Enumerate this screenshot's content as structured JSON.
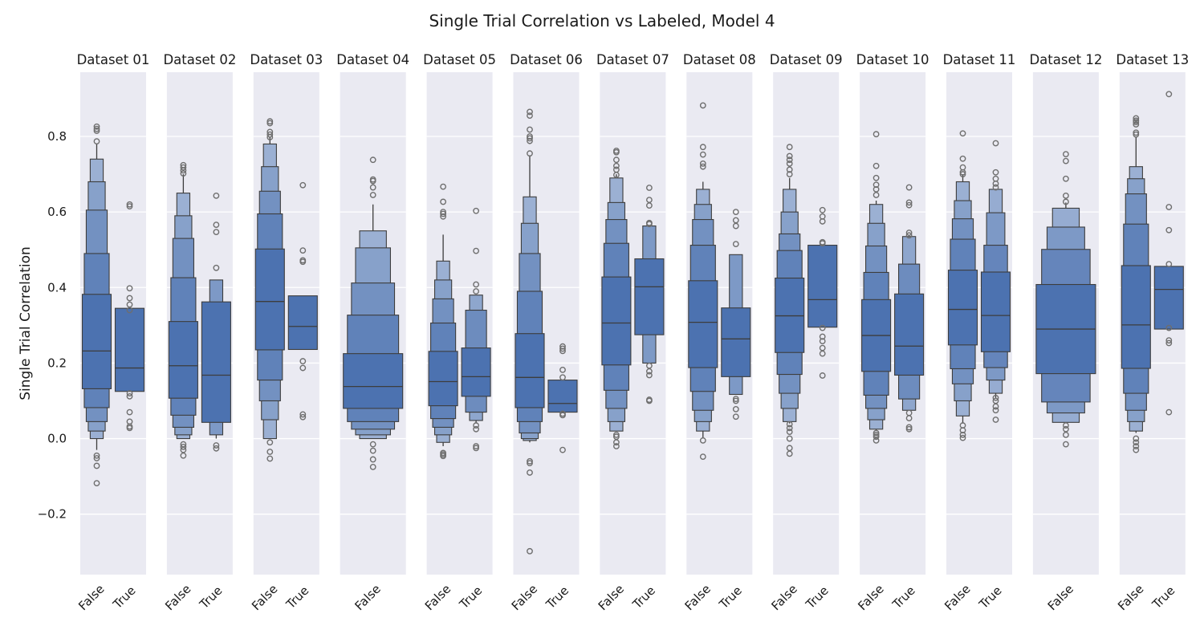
{
  "title": "Single Trial Correlation vs Labeled, Model 4",
  "chart_data": {
    "type": "boxen",
    "title": "Single Trial Correlation vs Labeled, Model 4",
    "ylabel": "Single Trial Correlation",
    "xlabel": "",
    "ylim": [
      -0.36,
      0.97
    ],
    "yticks": [
      -0.2,
      0.0,
      0.2,
      0.4,
      0.6,
      0.8
    ],
    "grid": true,
    "colors": {
      "box": "#4c72b0",
      "edge": "#3d3d3d",
      "panel_bg": "#eaeaf2",
      "grid": "#ffffff"
    },
    "panels": [
      {
        "name": "Dataset 01",
        "categories": [
          {
            "label": "False",
            "median": 0.232,
            "extent": [
              -0.03,
              0.78
            ],
            "levels": [
              [
                0.132,
                0.382
              ],
              [
                0.082,
                0.49
              ],
              [
                0.045,
                0.605
              ],
              [
                0.02,
                0.68
              ],
              [
                0.0,
                0.74
              ]
            ],
            "outliers": [
              0.826,
              0.82,
              0.815,
              0.787,
              -0.045,
              -0.052,
              -0.072,
              -0.118
            ]
          },
          {
            "label": "True",
            "median": 0.187,
            "extent": [
              0.125,
              0.345
            ],
            "levels": [
              [
                0.125,
                0.345
              ]
            ],
            "outliers": [
              0.62,
              0.615,
              0.398,
              0.372,
              0.355,
              0.34,
              0.12,
              0.112,
              0.07,
              0.045,
              0.032,
              0.028
            ]
          }
        ]
      },
      {
        "name": "Dataset 02",
        "categories": [
          {
            "label": "False",
            "median": 0.193,
            "extent": [
              0.0,
              0.7
            ],
            "levels": [
              [
                0.107,
                0.31
              ],
              [
                0.062,
                0.426
              ],
              [
                0.03,
                0.53
              ],
              [
                0.01,
                0.59
              ],
              [
                0.0,
                0.65
              ]
            ],
            "outliers": [
              0.724,
              0.718,
              0.71,
              0.702,
              -0.015,
              -0.022,
              -0.03,
              -0.045
            ]
          },
          {
            "label": "True",
            "median": 0.168,
            "extent": [
              0.0,
              0.42
            ],
            "levels": [
              [
                0.043,
                0.362
              ],
              [
                0.01,
                0.42
              ]
            ],
            "outliers": [
              0.643,
              0.566,
              0.547,
              0.452,
              -0.018,
              -0.026
            ]
          }
        ]
      },
      {
        "name": "Dataset 03",
        "categories": [
          {
            "label": "False",
            "median": 0.363,
            "extent": [
              0.0,
              0.8
            ],
            "levels": [
              [
                0.235,
                0.502
              ],
              [
                0.155,
                0.595
              ],
              [
                0.1,
                0.655
              ],
              [
                0.05,
                0.72
              ],
              [
                0.0,
                0.78
              ]
            ],
            "outliers": [
              0.84,
              0.835,
              0.812,
              0.805,
              0.798,
              -0.01,
              -0.035,
              -0.053
            ]
          },
          {
            "label": "True",
            "median": 0.297,
            "extent": [
              0.236,
              0.378
            ],
            "levels": [
              [
                0.236,
                0.378
              ]
            ],
            "outliers": [
              0.671,
              0.498,
              0.472,
              0.468,
              0.205,
              0.187,
              0.064,
              0.057
            ]
          }
        ]
      },
      {
        "name": "Dataset 04",
        "categories": [
          {
            "label": "False",
            "median": 0.138,
            "extent": [
              0.0,
              0.62
            ],
            "levels": [
              [
                0.08,
                0.225
              ],
              [
                0.045,
                0.327
              ],
              [
                0.025,
                0.412
              ],
              [
                0.01,
                0.505
              ],
              [
                0.0,
                0.55
              ]
            ],
            "outliers": [
              0.738,
              0.686,
              0.682,
              0.665,
              0.645,
              -0.015,
              -0.032,
              -0.055,
              -0.075
            ]
          }
        ]
      },
      {
        "name": "Dataset 05",
        "categories": [
          {
            "label": "False",
            "median": 0.151,
            "extent": [
              -0.02,
              0.54
            ],
            "levels": [
              [
                0.087,
                0.231
              ],
              [
                0.053,
                0.306
              ],
              [
                0.03,
                0.37
              ],
              [
                0.01,
                0.42
              ],
              [
                -0.01,
                0.47
              ]
            ],
            "outliers": [
              0.667,
              0.627,
              0.6,
              0.595,
              0.588,
              -0.038,
              -0.042,
              -0.046
            ]
          },
          {
            "label": "True",
            "median": 0.164,
            "extent": [
              0.04,
              0.38
            ],
            "levels": [
              [
                0.112,
                0.24
              ],
              [
                0.07,
                0.34
              ],
              [
                0.048,
                0.38
              ]
            ],
            "outliers": [
              0.603,
              0.497,
              0.408,
              0.39,
              0.035,
              0.025,
              -0.02,
              -0.025
            ]
          }
        ]
      },
      {
        "name": "Dataset 06",
        "categories": [
          {
            "label": "False",
            "median": 0.162,
            "extent": [
              -0.01,
              0.75
            ],
            "levels": [
              [
                0.082,
                0.278
              ],
              [
                0.045,
                0.39
              ],
              [
                0.015,
                0.49
              ],
              [
                0.0,
                0.57
              ],
              [
                -0.005,
                0.64
              ]
            ],
            "outliers": [
              0.865,
              0.855,
              0.818,
              0.8,
              0.795,
              0.788,
              0.755,
              -0.06,
              -0.065,
              -0.09,
              -0.298
            ]
          },
          {
            "label": "True",
            "median": 0.093,
            "extent": [
              0.07,
              0.155
            ],
            "levels": [
              [
                0.07,
                0.155
              ]
            ],
            "outliers": [
              0.244,
              0.238,
              0.232,
              0.182,
              0.162,
              0.066,
              0.062,
              -0.03
            ]
          }
        ]
      },
      {
        "name": "Dataset 07",
        "categories": [
          {
            "label": "False",
            "median": 0.306,
            "extent": [
              0.02,
              0.7
            ],
            "levels": [
              [
                0.195,
                0.428
              ],
              [
                0.128,
                0.517
              ],
              [
                0.08,
                0.58
              ],
              [
                0.045,
                0.625
              ],
              [
                0.02,
                0.69
              ]
            ],
            "outliers": [
              0.762,
              0.758,
              0.738,
              0.722,
              0.712,
              0.698,
              0.01,
              0.005,
              -0.01,
              -0.02
            ]
          },
          {
            "label": "True",
            "median": 0.402,
            "extent": [
              0.2,
              0.563
            ],
            "levels": [
              [
                0.275,
                0.476
              ],
              [
                0.2,
                0.563
              ]
            ],
            "outliers": [
              0.664,
              0.632,
              0.617,
              0.571,
              0.568,
              0.193,
              0.178,
              0.168,
              0.103,
              0.1
            ]
          }
        ]
      },
      {
        "name": "Dataset 08",
        "categories": [
          {
            "label": "False",
            "median": 0.308,
            "extent": [
              0.0,
              0.68
            ],
            "levels": [
              [
                0.188,
                0.418
              ],
              [
                0.125,
                0.512
              ],
              [
                0.075,
                0.58
              ],
              [
                0.045,
                0.62
              ],
              [
                0.02,
                0.66
              ]
            ],
            "outliers": [
              0.882,
              0.772,
              0.752,
              0.728,
              0.72,
              -0.005,
              -0.048
            ]
          },
          {
            "label": "True",
            "median": 0.264,
            "extent": [
              0.117,
              0.487
            ],
            "levels": [
              [
                0.164,
                0.346
              ],
              [
                0.117,
                0.487
              ]
            ],
            "outliers": [
              0.6,
              0.578,
              0.563,
              0.515,
              0.105,
              0.1,
              0.078,
              0.058
            ]
          }
        ]
      },
      {
        "name": "Dataset 09",
        "categories": [
          {
            "label": "False",
            "median": 0.325,
            "extent": [
              0.04,
              0.69
            ],
            "levels": [
              [
                0.228,
                0.425
              ],
              [
                0.17,
                0.498
              ],
              [
                0.12,
                0.542
              ],
              [
                0.08,
                0.6
              ],
              [
                0.045,
                0.66
              ]
            ],
            "outliers": [
              0.772,
              0.748,
              0.738,
              0.728,
              0.712,
              0.7,
              0.038,
              0.028,
              0.018,
              0.0,
              -0.025,
              -0.04
            ]
          },
          {
            "label": "True",
            "median": 0.368,
            "extent": [
              0.295,
              0.512
            ],
            "levels": [
              [
                0.295,
                0.512
              ]
            ],
            "outliers": [
              0.605,
              0.588,
              0.575,
              0.52,
              0.517,
              0.293,
              0.27,
              0.258,
              0.24,
              0.225,
              0.167
            ]
          }
        ]
      },
      {
        "name": "Dataset 10",
        "categories": [
          {
            "label": "False",
            "median": 0.273,
            "extent": [
              0.02,
              0.63
            ],
            "levels": [
              [
                0.178,
                0.368
              ],
              [
                0.115,
                0.44
              ],
              [
                0.08,
                0.51
              ],
              [
                0.05,
                0.57
              ],
              [
                0.025,
                0.62
              ]
            ],
            "outliers": [
              0.806,
              0.722,
              0.69,
              0.672,
              0.66,
              0.645,
              0.015,
              0.01,
              0.005,
              -0.005
            ]
          },
          {
            "label": "True",
            "median": 0.245,
            "extent": [
              0.075,
              0.535
            ],
            "levels": [
              [
                0.168,
                0.383
              ],
              [
                0.105,
                0.462
              ],
              [
                0.075,
                0.535
              ]
            ],
            "outliers": [
              0.665,
              0.625,
              0.618,
              0.545,
              0.538,
              0.068,
              0.054,
              0.03,
              0.025
            ]
          }
        ]
      },
      {
        "name": "Dataset 11",
        "categories": [
          {
            "label": "False",
            "median": 0.342,
            "extent": [
              0.04,
              0.7
            ],
            "levels": [
              [
                0.248,
                0.446
              ],
              [
                0.185,
                0.528
              ],
              [
                0.145,
                0.582
              ],
              [
                0.1,
                0.63
              ],
              [
                0.06,
                0.68
              ]
            ],
            "outliers": [
              0.808,
              0.741,
              0.718,
              0.705,
              0.7,
              0.035,
              0.022,
              0.01,
              0.002
            ]
          },
          {
            "label": "True",
            "median": 0.326,
            "extent": [
              0.108,
              0.66
            ],
            "levels": [
              [
                0.23,
                0.441
              ],
              [
                0.188,
                0.512
              ],
              [
                0.155,
                0.598
              ],
              [
                0.12,
                0.66
              ]
            ],
            "outliers": [
              0.782,
              0.705,
              0.688,
              0.675,
              0.665,
              0.108,
              0.1,
              0.085,
              0.075,
              0.05
            ]
          }
        ]
      },
      {
        "name": "Dataset 12",
        "categories": [
          {
            "label": "False",
            "median": 0.29,
            "extent": [
              0.043,
              0.625
            ],
            "levels": [
              [
                0.172,
                0.408
              ],
              [
                0.097,
                0.501
              ],
              [
                0.068,
                0.56
              ],
              [
                0.043,
                0.61
              ]
            ],
            "outliers": [
              0.753,
              0.735,
              0.688,
              0.643,
              0.627,
              0.035,
              0.025,
              0.01,
              -0.015
            ]
          }
        ]
      },
      {
        "name": "Dataset 13",
        "categories": [
          {
            "label": "False",
            "median": 0.301,
            "extent": [
              0.015,
              0.8
            ],
            "levels": [
              [
                0.186,
                0.458
              ],
              [
                0.12,
                0.568
              ],
              [
                0.075,
                0.648
              ],
              [
                0.045,
                0.688
              ],
              [
                0.02,
                0.72
              ]
            ],
            "outliers": [
              0.848,
              0.842,
              0.838,
              0.832,
              0.81,
              0.805,
              0.0,
              -0.01,
              -0.02,
              -0.03
            ]
          },
          {
            "label": "True",
            "median": 0.395,
            "extent": [
              0.29,
              0.456
            ],
            "levels": [
              [
                0.29,
                0.456
              ]
            ],
            "outliers": [
              0.912,
              0.613,
              0.552,
              0.462,
              0.293,
              0.26,
              0.253,
              0.07
            ]
          }
        ]
      }
    ]
  }
}
